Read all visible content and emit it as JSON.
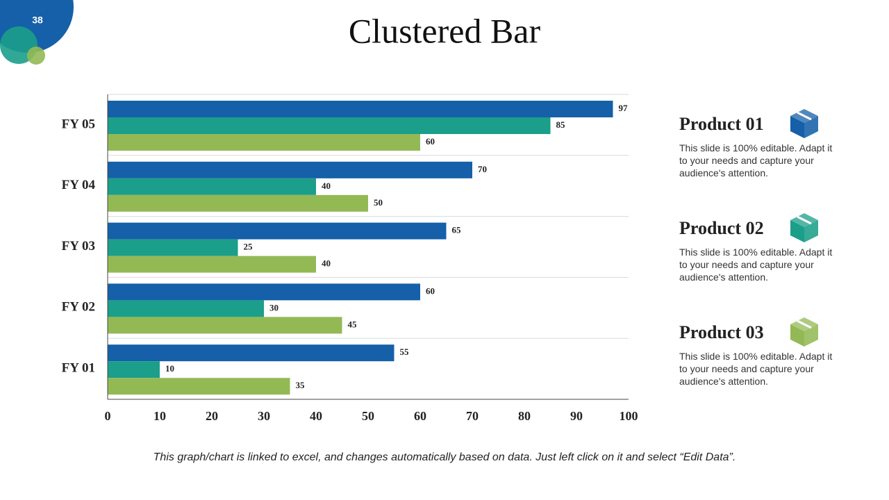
{
  "slide_number": "38",
  "chart_data": {
    "type": "bar",
    "orientation": "horizontal",
    "title": "Clustered Bar",
    "categories": [
      "FY 01",
      "FY 02",
      "FY 03",
      "FY 04",
      "FY 05"
    ],
    "series": [
      {
        "name": "Product 01",
        "color": "#1560a8",
        "values": [
          55,
          60,
          65,
          70,
          97
        ],
        "description": "This slide is 100% editable. Adapt it to your needs and capture your audience's attention."
      },
      {
        "name": "Product 02",
        "color": "#1b9e8a",
        "values": [
          10,
          30,
          25,
          40,
          85
        ],
        "description": "This slide is 100% editable. Adapt it to your needs and capture your audience's attention."
      },
      {
        "name": "Product 03",
        "color": "#93b955",
        "values": [
          35,
          45,
          40,
          50,
          60
        ],
        "description": "This slide is 100% editable. Adapt it to your needs and capture your audience's attention."
      }
    ],
    "xlim": [
      0,
      100
    ],
    "xticks": [
      0,
      10,
      20,
      30,
      40,
      50,
      60,
      70,
      80,
      90,
      100
    ]
  },
  "footnote": "This graph/chart is linked to excel, and changes automatically based on data. Just left click on it and select “Edit Data”."
}
